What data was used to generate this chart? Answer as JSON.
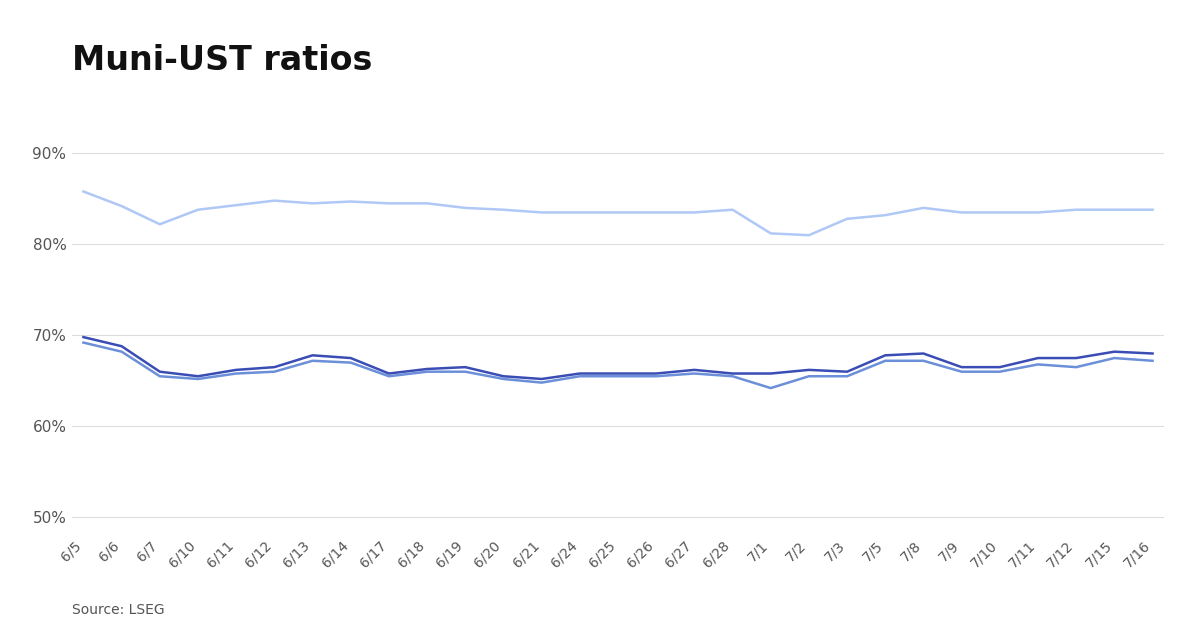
{
  "title": "Muni-UST ratios",
  "source": "Source: LSEG",
  "x_labels": [
    "6/5",
    "6/6",
    "6/7",
    "6/10",
    "6/11",
    "6/12",
    "6/13",
    "6/14",
    "6/17",
    "6/18",
    "6/19",
    "6/20",
    "6/21",
    "6/24",
    "6/25",
    "6/26",
    "6/27",
    "6/28",
    "7/1",
    "7/2",
    "7/3",
    "7/5",
    "7/8",
    "7/9",
    "7/10",
    "7/11",
    "7/12",
    "7/15",
    "7/16"
  ],
  "five_year": [
    69.8,
    68.8,
    66.0,
    65.5,
    66.2,
    66.5,
    67.8,
    67.5,
    65.8,
    66.3,
    66.5,
    65.5,
    65.2,
    65.8,
    65.8,
    65.8,
    66.2,
    65.8,
    65.8,
    66.2,
    66.0,
    67.8,
    68.0,
    66.5,
    66.5,
    67.5,
    67.5,
    68.2,
    68.0
  ],
  "ten_year": [
    69.2,
    68.2,
    65.5,
    65.2,
    65.8,
    66.0,
    67.2,
    67.0,
    65.5,
    66.0,
    66.0,
    65.2,
    64.8,
    65.5,
    65.5,
    65.5,
    65.8,
    65.5,
    64.2,
    65.5,
    65.5,
    67.2,
    67.2,
    66.0,
    66.0,
    66.8,
    66.5,
    67.5,
    67.2
  ],
  "thirty_year": [
    85.8,
    84.2,
    82.2,
    83.8,
    84.3,
    84.8,
    84.5,
    84.7,
    84.5,
    84.5,
    84.0,
    83.8,
    83.5,
    83.5,
    83.5,
    83.5,
    83.5,
    83.8,
    81.2,
    81.0,
    82.8,
    83.2,
    84.0,
    83.5,
    83.5,
    83.5,
    83.8,
    83.8,
    83.8
  ],
  "color_5year": "#3a4db5",
  "color_10year": "#6b8fd8",
  "color_30year": "#b0c8f5",
  "ylim": [
    48,
    93
  ],
  "yticks": [
    50,
    60,
    70,
    80,
    90
  ],
  "ytick_labels": [
    "50%",
    "60%",
    "70%",
    "80%",
    "90%"
  ],
  "background_color": "#ffffff",
  "grid_color": "#dddddd",
  "title_fontsize": 24,
  "axis_fontsize": 11,
  "legend_fontsize": 12,
  "source_fontsize": 10
}
